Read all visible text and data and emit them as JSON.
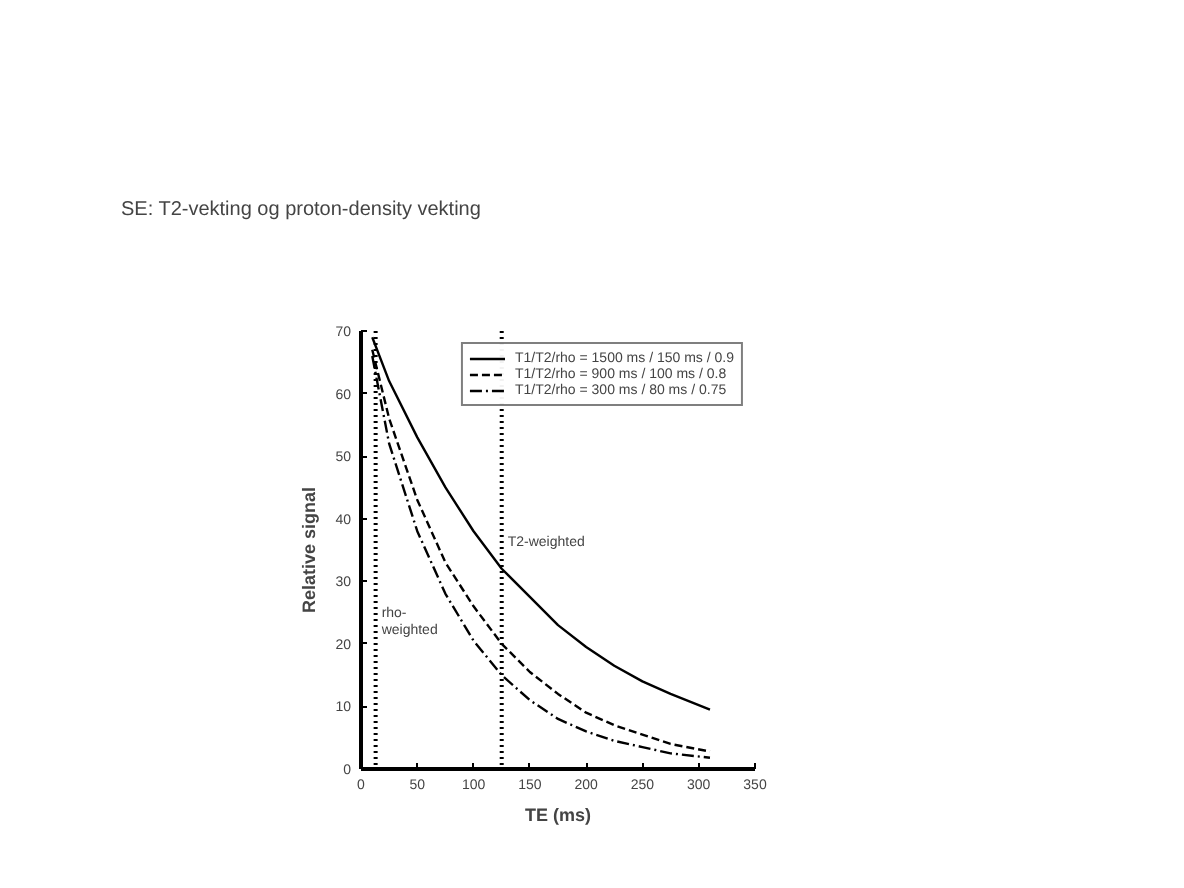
{
  "chart_data": {
    "type": "line",
    "title": "SE: T2-vekting og proton-density vekting",
    "xlabel": "TE (ms)",
    "ylabel": "Relative signal",
    "x": [
      10,
      25,
      50,
      75,
      100,
      125,
      150,
      175,
      200,
      225,
      250,
      275,
      310
    ],
    "series": [
      {
        "name": "T1/T2/rho = 1500 ms / 150 ms / 0.9",
        "color": "#000000",
        "line_style": "solid",
        "values": [
          69,
          62,
          53,
          45,
          38,
          32,
          27.5,
          23,
          19.5,
          16.5,
          14,
          12,
          9.5
        ]
      },
      {
        "name": "T1/T2/rho = 900 ms / 100 ms / 0.8",
        "color": "#000000",
        "line_style": "dashed",
        "values": [
          67,
          56,
          43,
          33,
          26,
          20,
          15.5,
          12,
          9,
          7,
          5.5,
          4,
          2.8
        ]
      },
      {
        "name": "T1/T2/rho = 300 ms / 80 ms / 0.75",
        "color": "#000000",
        "line_style": "dashdot",
        "values": [
          66,
          52,
          38,
          28,
          20.5,
          15,
          11,
          8,
          6,
          4.5,
          3.5,
          2.5,
          1.8
        ]
      }
    ],
    "ref_lines": [
      {
        "axis": "x",
        "value": 13,
        "label": "rho-\nweighted",
        "line_style": "dotted",
        "color": "#000000"
      },
      {
        "axis": "x",
        "value": 125,
        "label": "T2-weighted",
        "line_style": "dotted",
        "color": "#000000"
      }
    ],
    "xlim": [
      0,
      350
    ],
    "ylim": [
      0,
      70
    ],
    "xticks": [
      0,
      50,
      100,
      150,
      200,
      250,
      300,
      350
    ],
    "yticks": [
      0,
      10,
      20,
      30,
      40,
      50,
      60,
      70
    ],
    "grid": false,
    "legend": "top right",
    "marker": "none"
  }
}
